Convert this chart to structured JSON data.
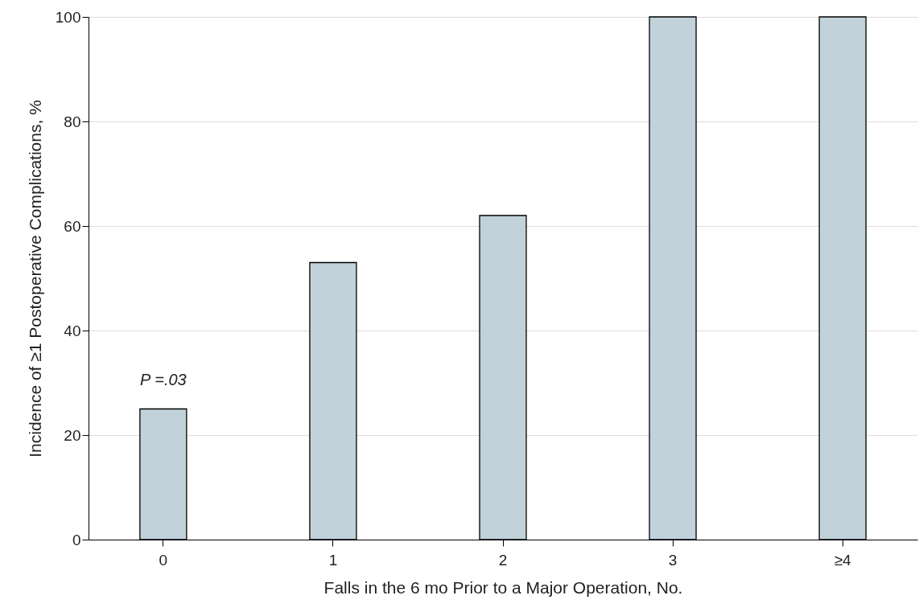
{
  "chart_data": {
    "type": "bar",
    "xlabel": "Falls in the 6 mo Prior to a Major Operation, No.",
    "ylabel": "Incidence of ≥1 Postoperative Complications, %",
    "categories": [
      "0",
      "1",
      "2",
      "3",
      "≥4"
    ],
    "values": [
      25,
      53,
      62,
      100,
      100
    ],
    "color": "#c2d2da",
    "ylim": [
      0,
      100
    ],
    "yticks": [
      0,
      20,
      40,
      60,
      80,
      100
    ],
    "grid": "y",
    "annotations": [
      {
        "text": "P =.03",
        "x": "0",
        "y": 25
      }
    ]
  }
}
